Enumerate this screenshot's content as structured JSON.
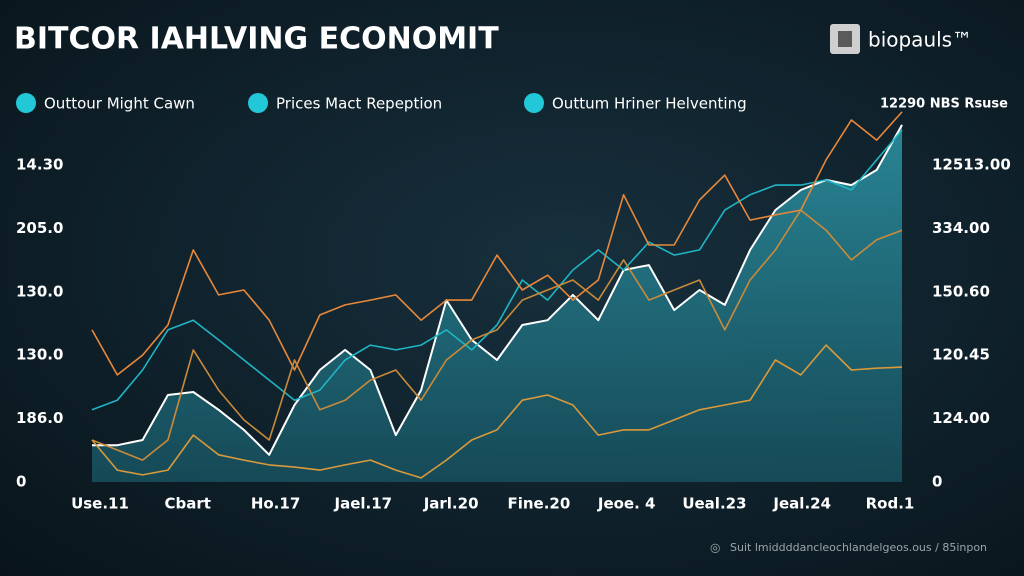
{
  "chart_data": {
    "type": "line",
    "title": "BITCOR IAHLVING ECONOMIT",
    "brand": "biopauls™",
    "corner_label": "12290 NBS Rsuse",
    "footer": "Suit lmiddddancleochlandelgeos.ous / 85inpon",
    "legend_color": "#22c8d8",
    "left_axis_labels": [
      "14.30",
      "205.0",
      "130.0",
      "130.0",
      "186.0",
      "0"
    ],
    "right_axis_labels": [
      "12513.00",
      "334.00",
      "150.60",
      "120.45",
      "124.00",
      "0"
    ],
    "x_labels": [
      "Use.11",
      "Cbart",
      "Ho.17",
      "Jael.17",
      "Jarl.20",
      "Fine.20",
      "Jeoe. 4",
      "Ueal.23",
      "Jeal.24",
      "Rod.1"
    ],
    "ylim": [
      0,
      100
    ],
    "series": [
      {
        "name": "Outtour Might Cawn",
        "color": "#ffffff",
        "area": true,
        "values": [
          9.9,
          9.9,
          11.3,
          23.4,
          24.2,
          19.4,
          14.0,
          7.3,
          20.7,
          30.1,
          35.5,
          30.1,
          12.6,
          24.7,
          48.9,
          38.2,
          32.8,
          42.2,
          43.5,
          50.3,
          43.5,
          57.0,
          58.3,
          46.2,
          51.6,
          47.6,
          62.4,
          73.1,
          78.5,
          81.2,
          79.8,
          83.9,
          96.0
        ]
      },
      {
        "name": "Prices Mact Repeption",
        "color": "#1fb5c4",
        "values": [
          19.4,
          22.0,
          30.1,
          40.9,
          43.5,
          38.2,
          32.8,
          27.4,
          22.0,
          24.7,
          32.8,
          36.8,
          35.5,
          36.8,
          40.9,
          35.5,
          42.2,
          54.3,
          48.9,
          57.0,
          62.4,
          57.0,
          64.5,
          61.0,
          62.4,
          73.1,
          77.2,
          79.8,
          79.8,
          81.2,
          78.5,
          86.6,
          94.6
        ]
      },
      {
        "name": "Outtum Hriner Helventing",
        "color": "#e8883a",
        "values": [
          40.9,
          28.8,
          34.1,
          42.2,
          62.4,
          50.3,
          51.6,
          43.5,
          30.1,
          44.9,
          47.6,
          48.9,
          50.3,
          43.5,
          48.9,
          48.9,
          61.0,
          51.6,
          55.6,
          48.9,
          54.3,
          77.2,
          63.7,
          63.7,
          75.8,
          82.5,
          70.4,
          71.8,
          73.1,
          86.6,
          97.3,
          91.9,
          99.5
        ]
      },
      {
        "color": "#c98a3a",
        "values": [
          11.3,
          8.6,
          5.9,
          11.3,
          35.5,
          24.7,
          16.7,
          11.3,
          32.8,
          19.4,
          22.0,
          27.4,
          30.1,
          22.0,
          32.8,
          38.2,
          40.9,
          48.9,
          51.6,
          54.3,
          48.9,
          59.7,
          48.9,
          51.6,
          54.3,
          40.9,
          54.3,
          62.4,
          73.1,
          67.7,
          59.7,
          65.1,
          67.7
        ]
      },
      {
        "color": "#d99a3c",
        "values": [
          11.3,
          3.2,
          1.9,
          3.2,
          12.6,
          7.3,
          5.9,
          4.6,
          4.0,
          3.2,
          4.6,
          5.9,
          3.2,
          1.1,
          5.9,
          11.3,
          14.0,
          22.0,
          23.4,
          20.7,
          12.6,
          14.0,
          14.0,
          16.7,
          19.4,
          20.7,
          22.0,
          32.8,
          28.8,
          36.8,
          30.1,
          30.6,
          30.9
        ]
      }
    ]
  }
}
